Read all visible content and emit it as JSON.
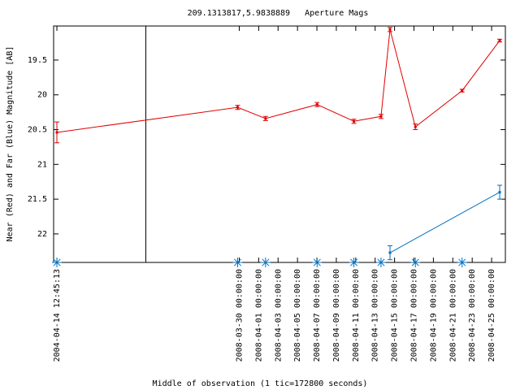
{
  "chart_data": {
    "type": "line",
    "title": "209.1313817,5.9838889   Aperture Mags",
    "xlabel": "Middle of observation (1 tic=172800 seconds)",
    "ylabel": "Near (Red) and Far (Blue) Magnitude [AB]",
    "x_segments": [
      {
        "xlim": [
          "2004-04-14 04:40:00",
          "2004-04-23 16:40:00"
        ]
      },
      {
        "xlim": [
          "2008-03-20 09:00:00",
          "2008-04-26 10:00:00"
        ]
      }
    ],
    "xticks": [
      "2004-04-14 12:45:13",
      "2008-03-30 00:00:00",
      "2008-04-01 00:00:00",
      "2008-04-03 00:00:00",
      "2008-04-05 00:00:00",
      "2008-04-07 00:00:00",
      "2008-04-09 00:00:00",
      "2008-04-11 00:00:00",
      "2008-04-13 00:00:00",
      "2008-04-15 00:00:00",
      "2008-04-17 00:00:00",
      "2008-04-19 00:00:00",
      "2008-04-21 00:00:00",
      "2008-04-23 00:00:00",
      "2008-04-25 00:00:00"
    ],
    "ylim": [
      22.41,
      19.01
    ],
    "yticks": [
      19.5,
      20,
      20.5,
      21,
      21.5,
      22
    ],
    "series": [
      {
        "color": "#e00000",
        "marker": "errorbar",
        "x": [
          "2004-04-14 12:45:13",
          "2008-03-29 20:00:00",
          "2008-04-01 17:00:00",
          "2008-04-07 00:30:00",
          "2008-04-10 19:30:00",
          "2008-04-13 14:30:00",
          "2008-04-14 12:45:00",
          "2008-04-17 03:30:00",
          "2008-04-21 23:00:00",
          "2008-04-25 20:00:00"
        ],
        "values": [
          20.54,
          20.18,
          20.34,
          20.14,
          20.38,
          20.31,
          19.06,
          20.46,
          19.94,
          19.22
        ],
        "errors": [
          0.15,
          0.03,
          0.03,
          0.03,
          0.03,
          0.03,
          0.03,
          0.04,
          0.02,
          0.02
        ]
      },
      {
        "color": "#0070c0",
        "marker": "errorbar",
        "x": [
          "2008-04-14 12:45:00",
          "2008-04-25 20:00:00"
        ],
        "values": [
          22.27,
          21.4
        ],
        "errors": [
          0.1,
          0.1
        ]
      },
      {
        "color": "#0070c0",
        "marker": "asterisk",
        "x": [
          "2004-04-14 12:45:13",
          "2008-03-29 20:00:00",
          "2008-04-01 17:00:00",
          "2008-04-07 00:30:00",
          "2008-04-10 19:30:00",
          "2008-04-13 14:30:00",
          "2008-04-17 03:30:00",
          "2008-04-21 23:00:00"
        ],
        "values": [
          22.41,
          22.41,
          22.41,
          22.41,
          22.41,
          22.41,
          22.41,
          22.41
        ]
      }
    ]
  }
}
